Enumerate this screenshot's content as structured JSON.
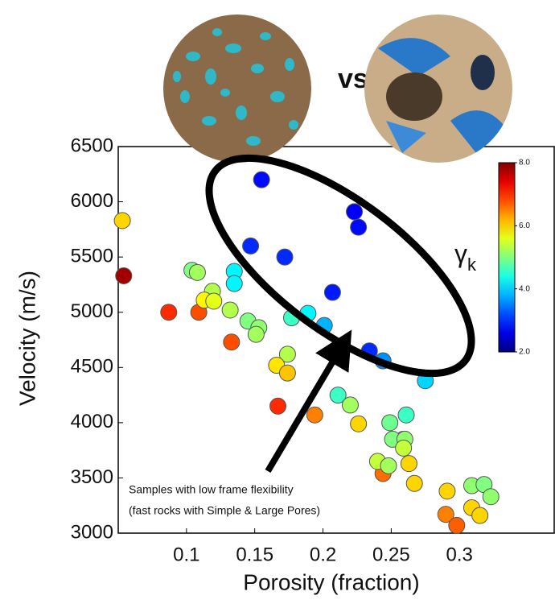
{
  "chart_data": {
    "type": "scatter",
    "photo_label": "vs.",
    "x_label": "Porosity (fraction)",
    "y_label": "Velocity (m/s)",
    "annotation": [
      "Samples with low frame flexibility",
      "(fast rocks with Simple & Large Pores)"
    ],
    "x": [
      0.053,
      0.054,
      0.087,
      0.109,
      0.104,
      0.108,
      0.119,
      0.113,
      0.12,
      0.132,
      0.135,
      0.135,
      0.133,
      0.145,
      0.153,
      0.151,
      0.174,
      0.166,
      0.174,
      0.167,
      0.177,
      0.189,
      0.201,
      0.155,
      0.147,
      0.172,
      0.207,
      0.223,
      0.226,
      0.234,
      0.244,
      0.275,
      0.194,
      0.211,
      0.22,
      0.226,
      0.244,
      0.249,
      0.261,
      0.259,
      0.251,
      0.26,
      0.259,
      0.24,
      0.248,
      0.263,
      0.267,
      0.291,
      0.309,
      0.318,
      0.323,
      0.29,
      0.298,
      0.309,
      0.315
    ],
    "values": [
      5830,
      5330,
      5000,
      5000,
      5380,
      5360,
      5190,
      5110,
      5100,
      5020,
      5370,
      5260,
      4730,
      4920,
      4860,
      4800,
      4620,
      4520,
      4450,
      4150,
      4950,
      4990,
      4880,
      6200,
      5600,
      5500,
      5180,
      5910,
      5770,
      4650,
      4560,
      4380,
      4070,
      4250,
      4160,
      3990,
      3540,
      4000,
      4070,
      3850,
      3850,
      3850,
      3770,
      3650,
      3610,
      3630,
      3450,
      3380,
      3430,
      3440,
      3330,
      3170,
      3070,
      3230,
      3160
    ],
    "color_values": [
      6.0,
      7.8,
      7.0,
      6.8,
      5.0,
      5.2,
      5.3,
      5.8,
      5.6,
      5.3,
      4.2,
      4.2,
      6.8,
      5.0,
      5.1,
      5.2,
      5.3,
      5.9,
      6.1,
      7.0,
      4.6,
      4.2,
      3.8,
      2.8,
      3.0,
      3.0,
      2.9,
      2.7,
      2.8,
      3.0,
      3.6,
      4.0,
      6.5,
      4.6,
      5.2,
      6.0,
      6.6,
      4.9,
      4.6,
      5.0,
      5.0,
      5.1,
      5.4,
      5.4,
      5.2,
      6.0,
      6.0,
      6.0,
      5.1,
      5.0,
      5.1,
      6.5,
      6.7,
      6.0,
      6.0
    ],
    "xlim": [
      0.05,
      0.37
    ],
    "ylim": [
      3000,
      6500
    ],
    "xticks": [
      0.1,
      0.15,
      0.2,
      0.25,
      0.3
    ],
    "yticks": [
      3000,
      3500,
      4000,
      4500,
      5000,
      5500,
      6000,
      6500
    ],
    "colorbar": {
      "symbol": "γ",
      "subscript": "k",
      "colormap": "jet",
      "range": [
        2,
        8
      ],
      "ticks": [
        {
          "value": 2,
          "label": "2.0"
        },
        {
          "value": 4,
          "label": "4.0"
        },
        {
          "value": 6,
          "label": "6.0"
        },
        {
          "value": 8,
          "label": "8.0"
        }
      ]
    }
  }
}
